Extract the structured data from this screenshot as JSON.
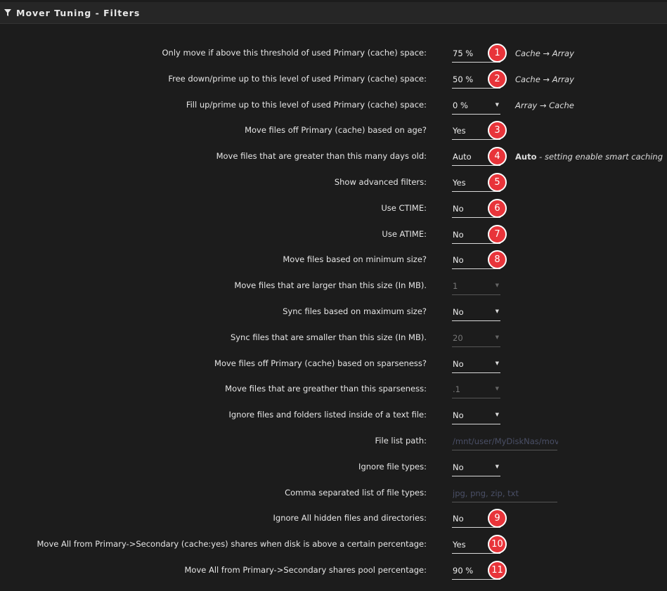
{
  "header": {
    "title": "Mover Tuning - Filters",
    "icon": "filter-icon"
  },
  "rows": [
    {
      "label": "Only move if above this threshold of used Primary (cache) space:",
      "value": "75 %",
      "badge": "1",
      "note": "Cache → Array"
    },
    {
      "label": "Free down/prime up to this level of used Primary (cache) space:",
      "value": "50 %",
      "badge": "2",
      "note": "Cache → Array"
    },
    {
      "label": "Fill up/prime up to this level of used Primary (cache) space:",
      "value": "0 %",
      "note": "Array → Cache"
    },
    {
      "label": "Move files off Primary (cache) based on age?",
      "value": "Yes",
      "badge": "3"
    },
    {
      "label": "Move files that are greater than this many days old:",
      "value": "Auto",
      "badge": "4",
      "note_bold": "Auto",
      "note": " - setting enable smart caching"
    },
    {
      "label": "Show advanced filters:",
      "value": "Yes",
      "badge": "5"
    },
    {
      "label": "Use CTIME:",
      "value": "No",
      "badge": "6"
    },
    {
      "label": "Use ATIME:",
      "value": "No",
      "badge": "7"
    },
    {
      "label": "Move files based on minimum size?",
      "value": "No",
      "badge": "8"
    },
    {
      "label": "Move files that are larger than this size (In MB).",
      "value": "1",
      "disabled": true
    },
    {
      "label": "Sync files based on maximum size?",
      "value": "No"
    },
    {
      "label": "Sync files that are smaller than this size (In MB).",
      "value": "20",
      "disabled": true
    },
    {
      "label": "Move files off Primary (cache) based on sparseness?",
      "value": "No"
    },
    {
      "label": "Move files that are greather than this sparseness:",
      "value": ".1",
      "disabled": true
    },
    {
      "label": "Ignore files and folders listed inside of a text file:",
      "value": "No"
    },
    {
      "label": "File list path:",
      "placeholder": "/mnt/user/MyDiskNas/mover_ignore.txt"
    },
    {
      "label": "Ignore file types:",
      "value": "No"
    },
    {
      "label": "Comma separated list of file types:",
      "placeholder": "jpg, png, zip, txt"
    },
    {
      "label": "Ignore All hidden files and directories:",
      "value": "No",
      "badge": "9"
    },
    {
      "label": "Move All from Primary->Secondary (cache:yes) shares when disk is above a certain percentage:",
      "value": "Yes",
      "badge": "10"
    },
    {
      "label": "Move All from Primary->Secondary shares pool percentage:",
      "value": "90 %",
      "badge": "11"
    }
  ]
}
